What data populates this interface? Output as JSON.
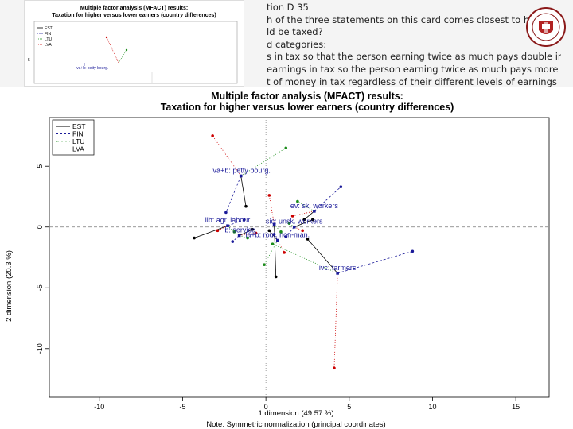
{
  "slide": {
    "lines": [
      "tion D 35",
      "h of the three statements on this card comes closest to how you think",
      "ld be taxed?",
      "d categories:",
      "s in tax so that the person earning twice as much pays double in tax",
      " earnings in tax so the person earning twice as much pays more than",
      "t of money in tax regardless of their different levels of earnings"
    ]
  },
  "thumbnail": {
    "title_line1": "Multiple factor analysis (MFACT) results:",
    "title_line2": "Taxation for higher versus lower earners (country differences)",
    "legend": [
      "EST",
      "FIN",
      "LTU",
      "LVA"
    ],
    "point_label": "lva+b: petty bourg.",
    "ytick": "5"
  },
  "chart_data": {
    "type": "scatter",
    "title_line1": "Multiple factor analysis (MFACT) results:",
    "title_line2": "Taxation for higher versus lower earners (country differences)",
    "xlabel": "1 dimension (49.57 %)",
    "ylabel": "2 dimension (20.3 %)",
    "note": "Note: Symmetric normalization (principal coordinates)",
    "xlim": [
      -13,
      17
    ],
    "ylim": [
      -14,
      9
    ],
    "xticks": [
      -10,
      -5,
      0,
      5,
      10,
      15
    ],
    "yticks": [
      -10,
      -5,
      0,
      5
    ],
    "legend_position": "top-left",
    "colors": {
      "EST": "#000000",
      "FIN": "#1a1a99",
      "LTU": "#1a8c1a",
      "LVA": "#cc0000"
    },
    "legend": [
      {
        "name": "EST",
        "color": "#000000",
        "dash": "solid"
      },
      {
        "name": "FIN",
        "color": "#1a1a99",
        "dash": "dash"
      },
      {
        "name": "LTU",
        "color": "#1a8c1a",
        "dash": "dot"
      },
      {
        "name": "LVA",
        "color": "#cc0000",
        "dash": "dot"
      }
    ],
    "groups": [
      {
        "label": "lva+b: petty bourg.",
        "center": [
          -1.5,
          4.2
        ],
        "points": [
          {
            "country": "LVA",
            "x": -3.2,
            "y": 7.5
          },
          {
            "country": "LTU",
            "x": 1.2,
            "y": 6.5
          },
          {
            "country": "EST",
            "x": -1.2,
            "y": 1.7
          },
          {
            "country": "FIN",
            "x": -2.4,
            "y": 1.2
          }
        ]
      },
      {
        "label": "ev: sk. workers",
        "center": [
          2.9,
          1.3
        ],
        "points": [
          {
            "country": "FIN",
            "x": 4.5,
            "y": 3.3
          },
          {
            "country": "LTU",
            "x": 1.9,
            "y": 2.1
          },
          {
            "country": "EST",
            "x": 2.3,
            "y": 0.6
          },
          {
            "country": "LVA",
            "x": 1.6,
            "y": 0.9
          }
        ]
      },
      {
        "label": "llb: agr. labour",
        "center": [
          -2.3,
          0.1
        ],
        "points": [
          {
            "country": "EST",
            "x": -4.3,
            "y": -0.9
          },
          {
            "country": "FIN",
            "x": -1.3,
            "y": 0.6
          },
          {
            "country": "LTU",
            "x": -1.9,
            "y": -0.4
          },
          {
            "country": "LVA",
            "x": -2.9,
            "y": -0.3
          }
        ]
      },
      {
        "label": "sic: unsk. workers",
        "center": [
          1.7,
          0.0
        ],
        "points": [
          {
            "country": "EST",
            "x": 2.8,
            "y": 0.6
          },
          {
            "country": "FIN",
            "x": 1.2,
            "y": -0.8
          },
          {
            "country": "LTU",
            "x": 1.4,
            "y": 0.3
          },
          {
            "country": "LVA",
            "x": 2.2,
            "y": -0.3
          }
        ]
      },
      {
        "label": "lb: service",
        "center": [
          -1.6,
          -0.7
        ],
        "points": [
          {
            "country": "EST",
            "x": -0.8,
            "y": -0.2
          },
          {
            "country": "FIN",
            "x": -2.0,
            "y": -1.2
          },
          {
            "country": "LTU",
            "x": -1.1,
            "y": -0.9
          },
          {
            "country": "LVA",
            "x": -0.6,
            "y": -0.5
          }
        ]
      },
      {
        "label": "la+b: rout. non-man.",
        "center": [
          0.7,
          -1.1
        ],
        "points": [
          {
            "country": "EST",
            "x": 0.2,
            "y": -0.3
          },
          {
            "country": "FIN",
            "x": 0.5,
            "y": -0.6
          },
          {
            "country": "LTU",
            "x": -0.1,
            "y": -3.1
          },
          {
            "country": "LVA",
            "x": 1.1,
            "y": -2.1
          }
        ]
      },
      {
        "label": "ivc: farmers",
        "center": [
          4.3,
          -3.8
        ],
        "points": [
          {
            "country": "FIN",
            "x": 8.8,
            "y": -2.0
          },
          {
            "country": "LVA",
            "x": 4.1,
            "y": -11.6
          },
          {
            "country": "EST",
            "x": 2.5,
            "y": -1.0
          },
          {
            "country": "LTU",
            "x": 0.4,
            "y": -1.4
          }
        ]
      },
      {
        "label": "",
        "center": [
          0.5,
          0.2
        ],
        "points": [
          {
            "country": "LVA",
            "x": 0.2,
            "y": 2.6
          },
          {
            "country": "LTU",
            "x": 0.9,
            "y": -0.4
          },
          {
            "country": "EST",
            "x": 0.6,
            "y": -4.1
          }
        ]
      }
    ]
  }
}
